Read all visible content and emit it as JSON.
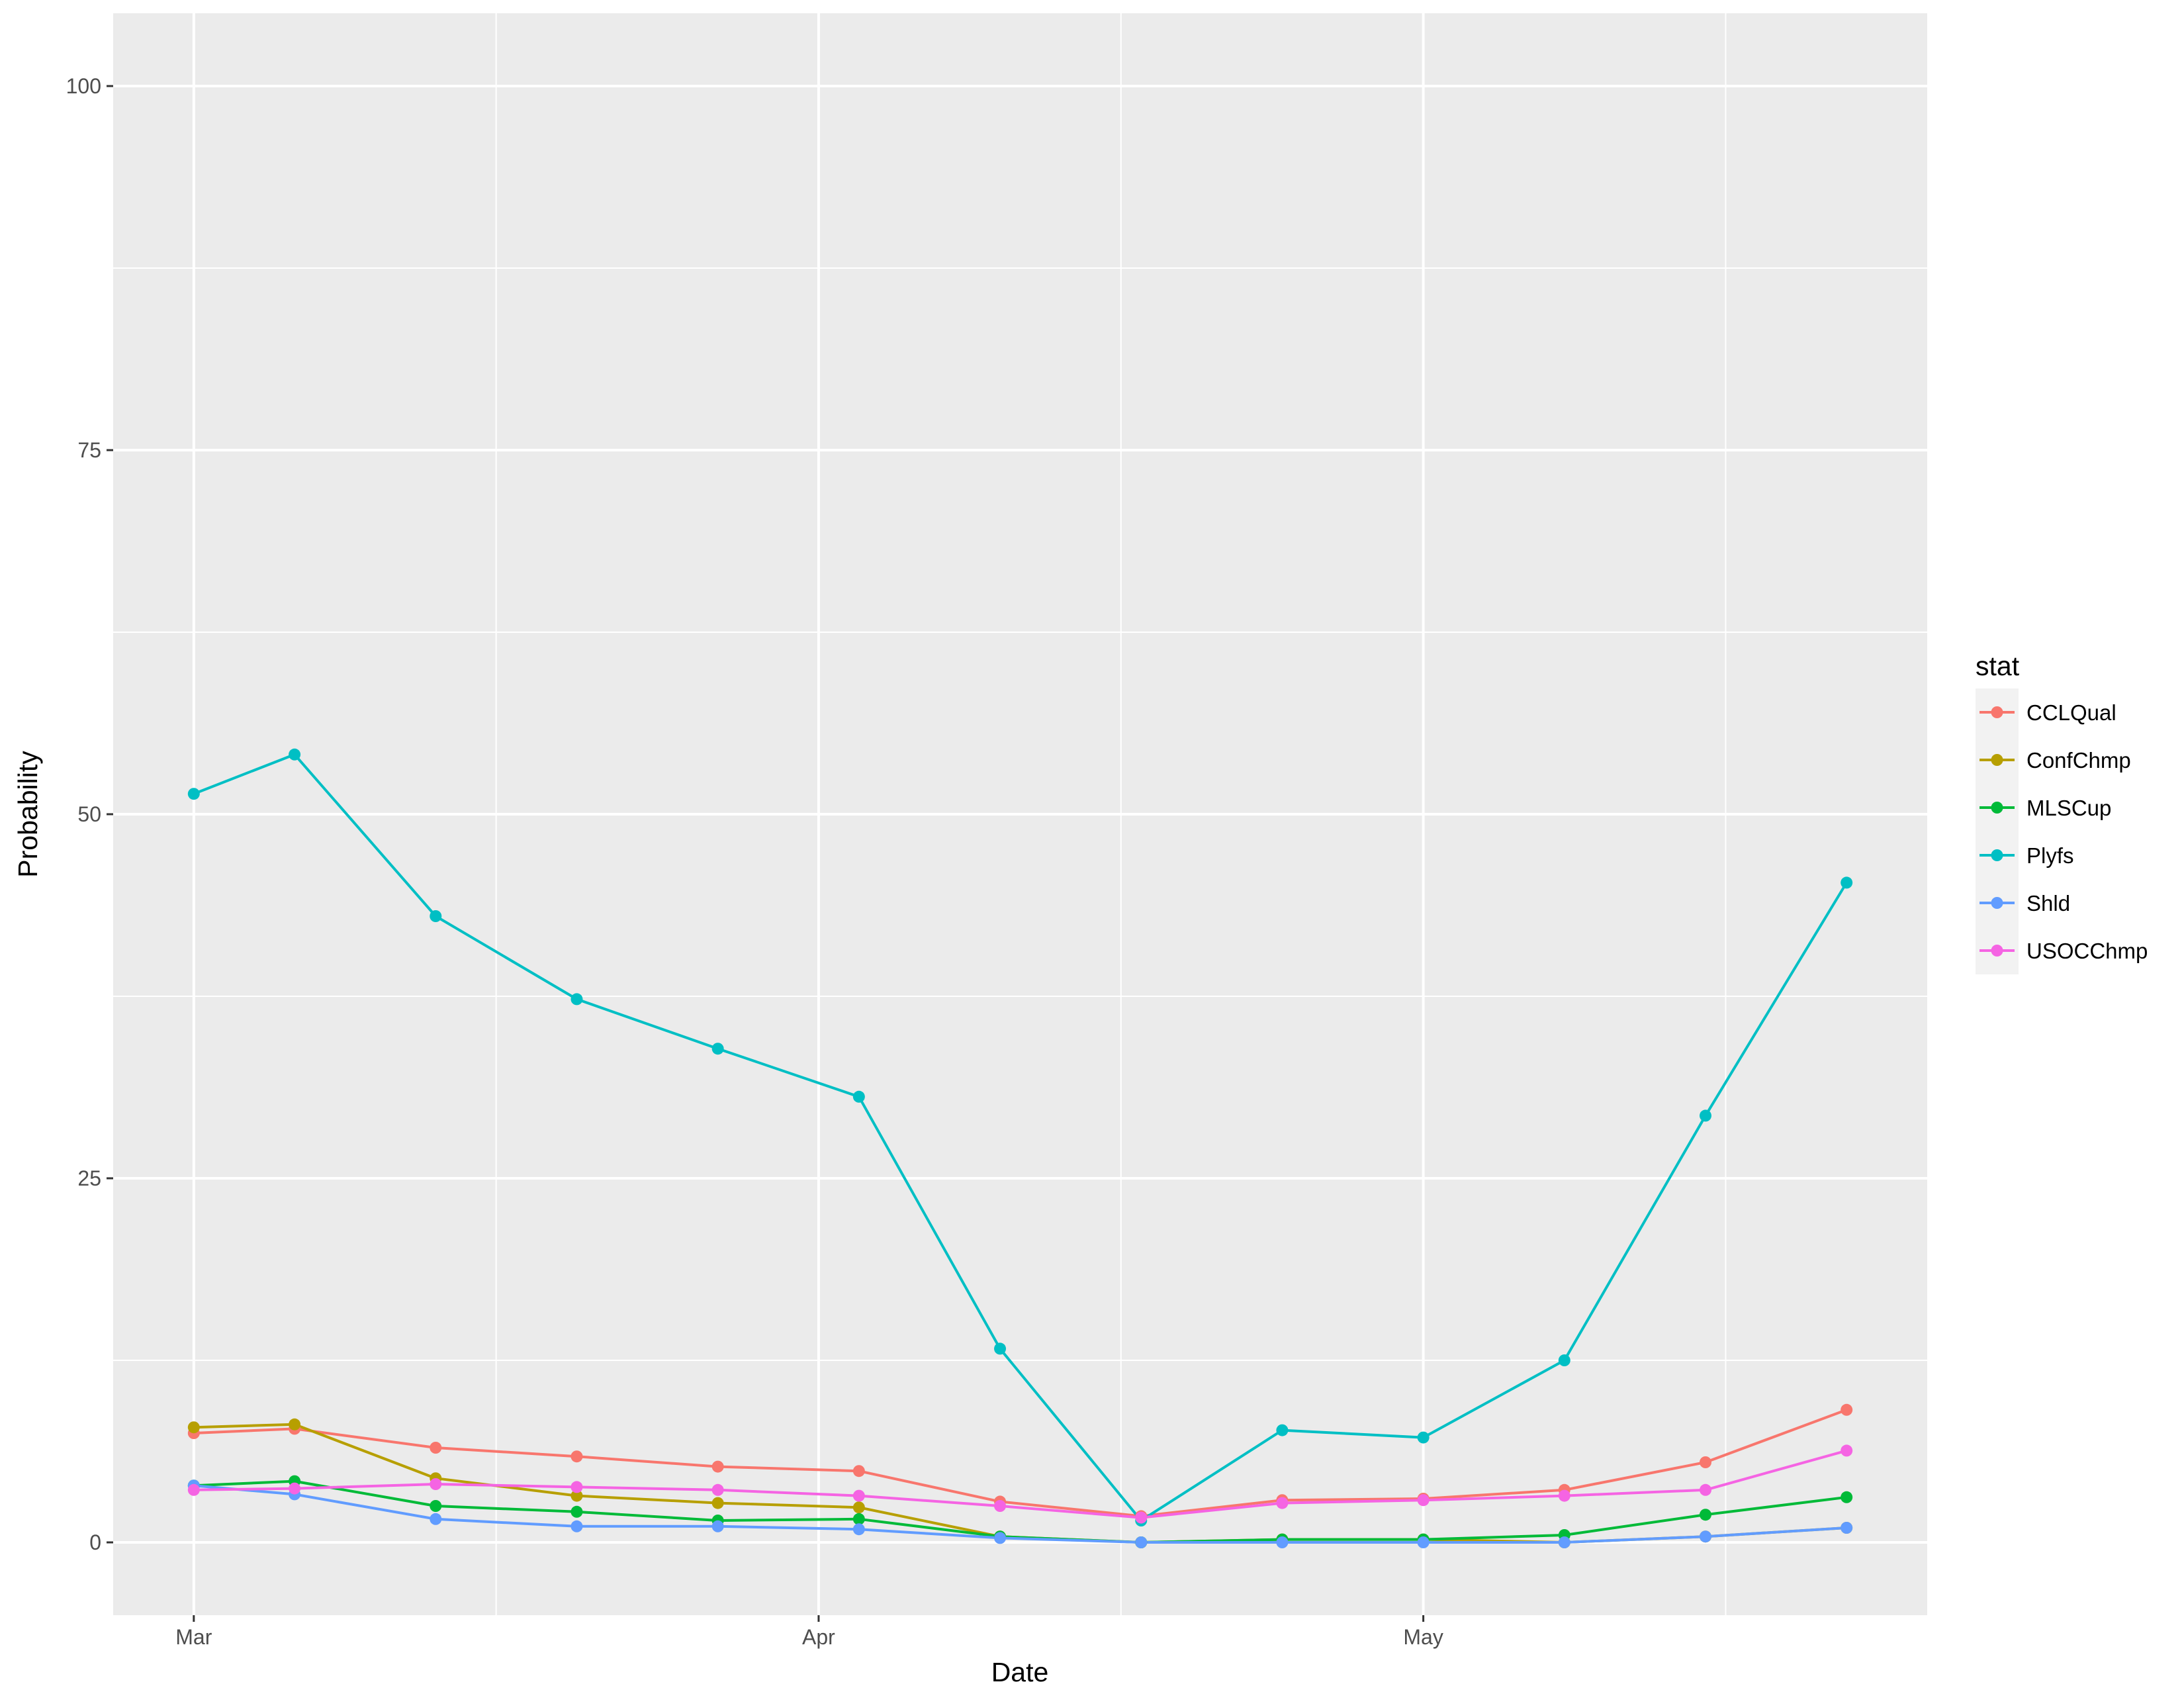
{
  "chart_data": {
    "type": "line",
    "title": "",
    "xlabel": "Date",
    "ylabel": "Probability",
    "x_type": "date",
    "x": [
      "2017-03-01",
      "2017-03-06",
      "2017-03-13",
      "2017-03-20",
      "2017-03-27",
      "2017-04-03",
      "2017-04-10",
      "2017-04-17",
      "2017-04-24",
      "2017-05-01",
      "2017-05-08",
      "2017-05-15",
      "2017-05-22"
    ],
    "xlim": [
      "2017-02-25",
      "2017-05-26"
    ],
    "x_ticks": [
      {
        "date": "2017-03-01",
        "label": "Mar"
      },
      {
        "date": "2017-04-01",
        "label": "Apr"
      },
      {
        "date": "2017-05-01",
        "label": "May"
      }
    ],
    "x_minor_ticks": [
      "2017-03-16",
      "2017-04-16",
      "2017-05-16"
    ],
    "ylim": [
      -5,
      105
    ],
    "y_ticks": [
      0,
      25,
      50,
      75,
      100
    ],
    "y_minor_ticks": [
      12.5,
      37.5,
      62.5,
      87.5
    ],
    "grid": true,
    "legend_position": "right",
    "legend_title": "stat",
    "series": [
      {
        "name": "CCLQual",
        "color": "#F8766D",
        "values": [
          7.5,
          7.8,
          6.5,
          5.9,
          5.2,
          4.9,
          2.8,
          1.8,
          2.9,
          3.0,
          3.6,
          5.5,
          9.1
        ]
      },
      {
        "name": "ConfChmp",
        "color": "#B79F00",
        "values": [
          7.9,
          8.1,
          4.4,
          3.2,
          2.7,
          2.4,
          0.4,
          0.0,
          0.2,
          0.2,
          0.0,
          0.4,
          1.0
        ]
      },
      {
        "name": "MLSCup",
        "color": "#00BA38",
        "values": [
          3.9,
          4.2,
          2.5,
          2.1,
          1.5,
          1.6,
          0.4,
          0.0,
          0.2,
          0.2,
          0.5,
          1.9,
          3.1
        ]
      },
      {
        "name": "Plyfs",
        "color": "#00BFC4",
        "values": [
          51.4,
          54.1,
          43.0,
          37.3,
          33.9,
          30.6,
          13.3,
          1.5,
          7.7,
          7.2,
          12.5,
          29.3,
          45.3
        ]
      },
      {
        "name": "Shld",
        "color": "#619CFF",
        "values": [
          3.9,
          3.3,
          1.6,
          1.1,
          1.1,
          0.9,
          0.3,
          0.0,
          0.0,
          0.0,
          0.0,
          0.4,
          1.0
        ]
      },
      {
        "name": "USOCChmp",
        "color": "#F564E3",
        "values": [
          3.6,
          3.7,
          4.0,
          3.8,
          3.6,
          3.2,
          2.5,
          1.7,
          2.7,
          2.9,
          3.2,
          3.6,
          6.3
        ]
      }
    ]
  }
}
